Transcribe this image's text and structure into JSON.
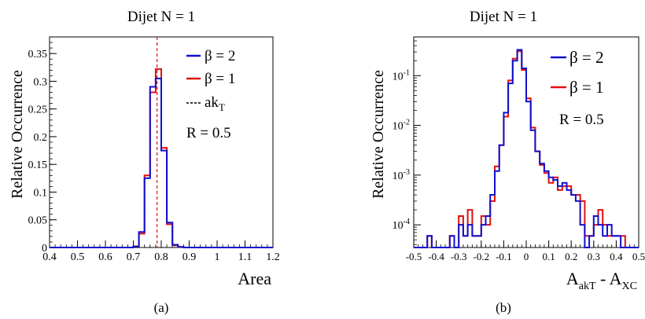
{
  "captions": [
    "(a)",
    "(b)"
  ],
  "colors": {
    "beta2": "#1010d0",
    "beta1": "#e01010",
    "ref": "#e01010",
    "axis": "#000000"
  },
  "chart_data": [
    {
      "type": "line",
      "title": "Dijet N = 1",
      "xlabel": "Area",
      "ylabel": "Relative Occurrence",
      "xlim": [
        0.4,
        1.2
      ],
      "ylim": [
        0,
        0.38
      ],
      "xticks": [
        0.4,
        0.5,
        0.6,
        0.7,
        0.8,
        0.9,
        1,
        1.1,
        1.2
      ],
      "xtick_labels": [
        "0.4",
        "0.5",
        "0.6",
        "0.7",
        "0.8",
        "0.9",
        "1",
        "1.1",
        "1.2"
      ],
      "yticks": [
        0,
        0.05,
        0.1,
        0.15,
        0.2,
        0.25,
        0.3,
        0.35
      ],
      "ytick_labels": [
        "0",
        "0.05",
        "0.1",
        "0.15",
        "0.2",
        "0.25",
        "0.3",
        "0.35"
      ],
      "legend": {
        "entries": [
          {
            "label": "β = 2",
            "style": "blue-solid"
          },
          {
            "label": "β = 1",
            "style": "red-solid"
          },
          {
            "label": "ak",
            "sub": "T",
            "style": "black-dashed"
          }
        ],
        "note": "R = 0.5",
        "position": "top-right"
      },
      "reference_line": {
        "x": 0.785,
        "style": "red-dashed"
      },
      "bins": {
        "start": 0.4,
        "width": 0.02
      },
      "series": [
        {
          "name": "β = 2",
          "values": [
            0,
            0,
            0,
            0,
            0,
            0,
            0,
            0,
            0,
            0,
            0,
            0,
            0,
            0,
            0,
            0.002,
            0.028,
            0.125,
            0.29,
            0.305,
            0.175,
            0.045,
            0.005,
            0.001,
            0,
            0,
            0,
            0,
            0,
            0,
            0,
            0,
            0,
            0,
            0,
            0,
            0,
            0,
            0,
            0
          ]
        },
        {
          "name": "β = 1",
          "values": [
            0,
            0,
            0,
            0,
            0,
            0,
            0,
            0,
            0,
            0,
            0,
            0,
            0,
            0,
            0,
            0.002,
            0.025,
            0.13,
            0.28,
            0.322,
            0.18,
            0.042,
            0.004,
            0.001,
            0,
            0,
            0,
            0,
            0,
            0,
            0,
            0,
            0,
            0,
            0,
            0,
            0,
            0,
            0,
            0
          ]
        }
      ]
    },
    {
      "type": "line",
      "title": "Dijet N = 1",
      "xlabel": "A",
      "xlabel_sub1": "akT",
      "xlabel_mid": " - A",
      "xlabel_sub2": "XC",
      "ylabel": "Relative Occurrence",
      "yscale": "log",
      "xlim": [
        -0.5,
        0.5
      ],
      "ylim": [
        3.5e-05,
        0.6
      ],
      "xticks": [
        -0.5,
        -0.4,
        -0.3,
        -0.2,
        -0.1,
        0,
        0.1,
        0.2,
        0.3,
        0.4,
        0.5
      ],
      "xtick_labels": [
        "-0.5",
        "-0.4",
        "-0.3",
        "-0.2",
        "-0.1",
        "0",
        "0.1",
        "0.2",
        "0.3",
        "0.4",
        "0.5"
      ],
      "yticks": [
        0.0001,
        0.001,
        0.01,
        0.1
      ],
      "ytick_labels": [
        {
          "base": "10",
          "exp": "-4"
        },
        {
          "base": "10",
          "exp": "-3"
        },
        {
          "base": "10",
          "exp": "-2"
        },
        {
          "base": "10",
          "exp": "-1"
        }
      ],
      "legend": {
        "entries": [
          {
            "label": "β = 2",
            "style": "blue-solid"
          },
          {
            "label": "β = 1",
            "style": "red-solid"
          }
        ],
        "note": "R = 0.5",
        "position": "top-right"
      },
      "bins": {
        "start": -0.5,
        "width": 0.02
      },
      "series": [
        {
          "name": "β = 2",
          "values": [
            0,
            0,
            0,
            6e-05,
            0,
            0,
            0,
            0,
            6e-05,
            0,
            0.0001,
            6e-05,
            0.0001,
            6e-05,
            6e-05,
            0.0001,
            0.00015,
            0.0004,
            0.0012,
            0.004,
            0.018,
            0.07,
            0.2,
            0.33,
            0.14,
            0.03,
            0.008,
            0.003,
            0.0017,
            0.0012,
            0.0009,
            0.0008,
            0.0006,
            0.0007,
            0.0005,
            0.0004,
            0.0003,
            0.0001,
            0,
            6e-05,
            0.00015,
            0.0001,
            6e-05,
            0.0001,
            6e-05,
            6e-05,
            0,
            0,
            0,
            0
          ]
        },
        {
          "name": "β = 1",
          "values": [
            0,
            0,
            0,
            6e-05,
            0,
            0,
            0,
            0,
            6e-05,
            0,
            0.00015,
            6e-05,
            0.0002,
            6e-05,
            6e-05,
            0.00015,
            0.0001,
            0.0003,
            0.0015,
            0.004,
            0.015,
            0.08,
            0.22,
            0.31,
            0.13,
            0.035,
            0.009,
            0.003,
            0.0016,
            0.0011,
            0.0007,
            0.0009,
            0.0005,
            0.0006,
            0.0006,
            0.0004,
            0.0004,
            0.0003,
            6e-05,
            6e-05,
            0.0001,
            0.0002,
            0.0001,
            6e-05,
            6e-05,
            6e-05,
            6e-05,
            0,
            0,
            0
          ]
        }
      ]
    }
  ]
}
